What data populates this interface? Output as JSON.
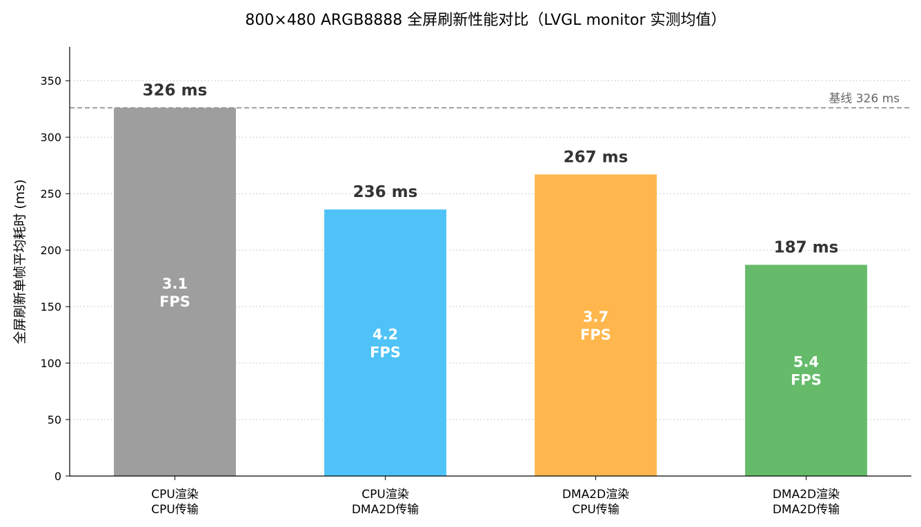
{
  "chart_data": {
    "type": "bar",
    "title": "800×480 ARGB8888 全屏刷新性能对比（LVGL monitor 实测均值）",
    "xlabel": "",
    "ylabel": "全屏刷新单帧平均耗时 (ms)",
    "ylim": [
      0,
      380
    ],
    "yticks": [
      0,
      50,
      100,
      150,
      200,
      250,
      300,
      350
    ],
    "grid": "horizontal-dotted",
    "categories": [
      [
        "CPU渲染",
        "CPU传输"
      ],
      [
        "CPU渲染",
        "DMA2D传输"
      ],
      [
        "DMA2D渲染",
        "CPU传输"
      ],
      [
        "DMA2D渲染",
        "DMA2D传输"
      ]
    ],
    "values": [
      326,
      236,
      267,
      187
    ],
    "value_labels": [
      "326 ms",
      "236 ms",
      "267 ms",
      "187 ms"
    ],
    "fps_labels": [
      [
        "3.1",
        "FPS"
      ],
      [
        "4.2",
        "FPS"
      ],
      [
        "3.7",
        "FPS"
      ],
      [
        "5.4",
        "FPS"
      ]
    ],
    "colors": [
      "#9e9e9e",
      "#4fc3f7",
      "#ffb74d",
      "#66bb6a"
    ],
    "baseline": {
      "value": 326,
      "label": "基线 326 ms",
      "color": "#808080",
      "style": "dashed"
    }
  }
}
